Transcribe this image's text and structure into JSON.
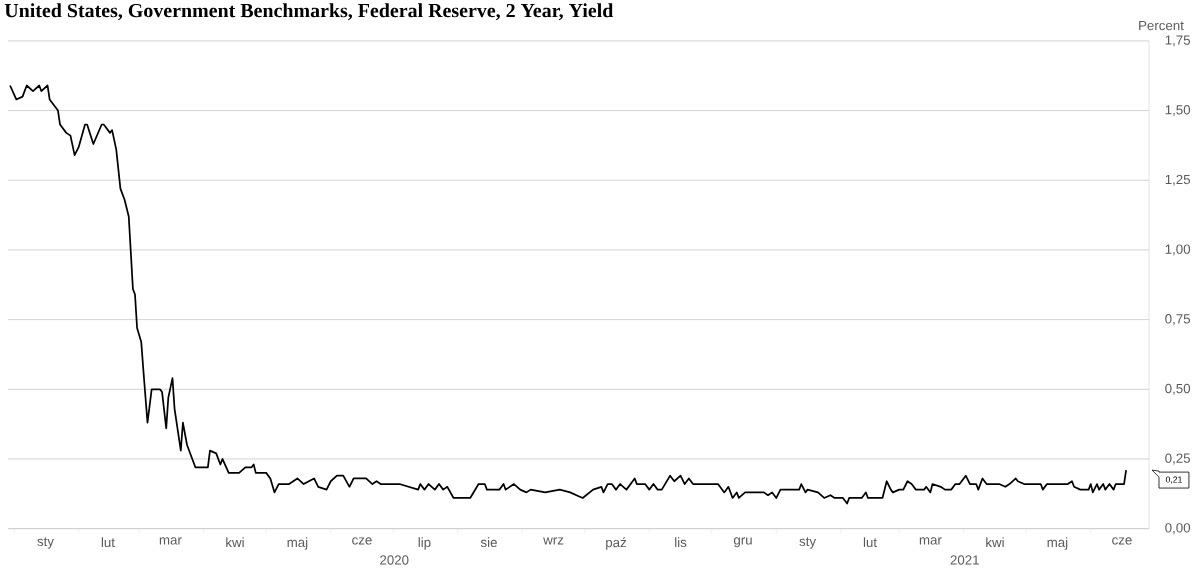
{
  "chart_data": {
    "type": "line",
    "title": "United States, Government Benchmarks, Federal Reserve, 2 Year, Yield",
    "ylabel": "Percent",
    "x": [
      "2019-12-30",
      "2020-01-02",
      "2020-01-05",
      "2020-01-07",
      "2020-01-10",
      "2020-01-13",
      "2020-01-14",
      "2020-01-17",
      "2020-01-18",
      "2020-01-22",
      "2020-01-23",
      "2020-01-26",
      "2020-01-28",
      "2020-01-30",
      "2020-02-01",
      "2020-02-04",
      "2020-02-05",
      "2020-02-08",
      "2020-02-12",
      "2020-02-13",
      "2020-02-16",
      "2020-02-17",
      "2020-02-19",
      "2020-02-21",
      "2020-02-23",
      "2020-02-25",
      "2020-02-27",
      "2020-02-28",
      "2020-02-29",
      "2020-03-02",
      "2020-03-03",
      "2020-03-05",
      "2020-03-07",
      "2020-03-11",
      "2020-03-12",
      "2020-03-14",
      "2020-03-15",
      "2020-03-17",
      "2020-03-18",
      "2020-03-21",
      "2020-03-22",
      "2020-03-24",
      "2020-03-27",
      "2020-03-28",
      "2020-04-03",
      "2020-04-04",
      "2020-04-07",
      "2020-04-09",
      "2020-04-10",
      "2020-04-13",
      "2020-04-18",
      "2020-04-21",
      "2020-04-24",
      "2020-04-25",
      "2020-04-26",
      "2020-05-01",
      "2020-05-03",
      "2020-05-05",
      "2020-05-07",
      "2020-05-10",
      "2020-05-12",
      "2020-05-16",
      "2020-05-19",
      "2020-05-24",
      "2020-05-26",
      "2020-05-30",
      "2020-06-01",
      "2020-06-04",
      "2020-06-07",
      "2020-06-10",
      "2020-06-12",
      "2020-06-18",
      "2020-06-21",
      "2020-06-23",
      "2020-06-25",
      "2020-07-01",
      "2020-07-04",
      "2020-07-13",
      "2020-07-14",
      "2020-07-16",
      "2020-07-18",
      "2020-07-21",
      "2020-07-23",
      "2020-07-25",
      "2020-07-27",
      "2020-07-30",
      "2020-08-07",
      "2020-08-11",
      "2020-08-14",
      "2020-08-15",
      "2020-08-21",
      "2020-08-23",
      "2020-08-24",
      "2020-08-28",
      "2020-08-31",
      "2020-09-03",
      "2020-09-05",
      "2020-09-12",
      "2020-09-19",
      "2020-09-24",
      "2020-09-27",
      "2020-09-30",
      "2020-10-05",
      "2020-10-09",
      "2020-10-10",
      "2020-10-12",
      "2020-10-14",
      "2020-10-16",
      "2020-10-18",
      "2020-10-21",
      "2020-10-25",
      "2020-10-26",
      "2020-10-30",
      "2020-11-01",
      "2020-11-03",
      "2020-11-05",
      "2020-11-07",
      "2020-11-11",
      "2020-11-13",
      "2020-11-16",
      "2020-11-18",
      "2020-11-20",
      "2020-11-22",
      "2020-11-26",
      "2020-12-01",
      "2020-12-04",
      "2020-12-07",
      "2020-12-09",
      "2020-12-11",
      "2020-12-13",
      "2020-12-14",
      "2020-12-17",
      "2020-12-26",
      "2020-12-28",
      "2020-12-30",
      "2021-01-01",
      "2021-01-03",
      "2021-01-12",
      "2021-01-13",
      "2021-01-15",
      "2021-01-16",
      "2021-01-21",
      "2021-01-24",
      "2021-01-27",
      "2021-01-29",
      "2021-02-02",
      "2021-02-04",
      "2021-02-05",
      "2021-02-11",
      "2021-02-13",
      "2021-02-14",
      "2021-02-21",
      "2021-02-23",
      "2021-02-25",
      "2021-02-26",
      "2021-03-01",
      "2021-03-03",
      "2021-03-05",
      "2021-03-07",
      "2021-03-09",
      "2021-03-13",
      "2021-03-14",
      "2021-03-16",
      "2021-03-17",
      "2021-03-21",
      "2021-03-23",
      "2021-03-26",
      "2021-03-28",
      "2021-03-30",
      "2021-04-02",
      "2021-04-04",
      "2021-04-07",
      "2021-04-08",
      "2021-04-10",
      "2021-04-12",
      "2021-04-18",
      "2021-04-21",
      "2021-04-23",
      "2021-04-26",
      "2021-04-27",
      "2021-04-30",
      "2021-05-08",
      "2021-05-09",
      "2021-05-11",
      "2021-05-21",
      "2021-05-23",
      "2021-05-24",
      "2021-05-27",
      "2021-05-31",
      "2021-06-01",
      "2021-06-02",
      "2021-06-04",
      "2021-06-05",
      "2021-06-07",
      "2021-06-08",
      "2021-06-10",
      "2021-06-12",
      "2021-06-13",
      "2021-06-17",
      "2021-06-18"
    ],
    "series": [
      {
        "color": "#000000",
        "values": [
          1.59,
          1.54,
          1.55,
          1.59,
          1.57,
          1.59,
          1.57,
          1.59,
          1.54,
          1.5,
          1.45,
          1.42,
          1.41,
          1.34,
          1.37,
          1.45,
          1.45,
          1.38,
          1.45,
          1.45,
          1.42,
          1.43,
          1.36,
          1.22,
          1.18,
          1.12,
          0.86,
          0.84,
          0.72,
          0.67,
          0.57,
          0.38,
          0.5,
          0.5,
          0.49,
          0.36,
          0.47,
          0.54,
          0.43,
          0.28,
          0.38,
          0.3,
          0.24,
          0.22,
          0.22,
          0.28,
          0.27,
          0.23,
          0.25,
          0.2,
          0.2,
          0.22,
          0.22,
          0.23,
          0.2,
          0.2,
          0.18,
          0.13,
          0.16,
          0.16,
          0.16,
          0.18,
          0.16,
          0.18,
          0.15,
          0.14,
          0.17,
          0.19,
          0.19,
          0.15,
          0.18,
          0.18,
          0.16,
          0.17,
          0.16,
          0.16,
          0.16,
          0.14,
          0.16,
          0.14,
          0.16,
          0.14,
          0.16,
          0.14,
          0.15,
          0.11,
          0.11,
          0.16,
          0.16,
          0.14,
          0.14,
          0.16,
          0.14,
          0.16,
          0.14,
          0.13,
          0.14,
          0.13,
          0.14,
          0.13,
          0.12,
          0.11,
          0.14,
          0.15,
          0.13,
          0.16,
          0.16,
          0.14,
          0.16,
          0.14,
          0.18,
          0.16,
          0.16,
          0.14,
          0.16,
          0.14,
          0.14,
          0.19,
          0.17,
          0.19,
          0.16,
          0.18,
          0.16,
          0.16,
          0.16,
          0.16,
          0.13,
          0.15,
          0.11,
          0.13,
          0.11,
          0.13,
          0.13,
          0.12,
          0.13,
          0.11,
          0.14,
          0.14,
          0.16,
          0.13,
          0.14,
          0.13,
          0.11,
          0.12,
          0.11,
          0.11,
          0.09,
          0.11,
          0.11,
          0.13,
          0.11,
          0.11,
          0.17,
          0.14,
          0.13,
          0.14,
          0.14,
          0.17,
          0.16,
          0.14,
          0.14,
          0.15,
          0.13,
          0.16,
          0.15,
          0.14,
          0.14,
          0.16,
          0.16,
          0.19,
          0.16,
          0.16,
          0.14,
          0.18,
          0.16,
          0.16,
          0.15,
          0.16,
          0.18,
          0.17,
          0.16,
          0.16,
          0.14,
          0.16,
          0.16,
          0.17,
          0.15,
          0.14,
          0.14,
          0.16,
          0.13,
          0.16,
          0.14,
          0.16,
          0.14,
          0.16,
          0.14,
          0.16,
          0.16,
          0.21
        ]
      }
    ],
    "xlim": [
      "2019-12-29",
      "2021-06-29"
    ],
    "xticks": [
      {
        "value": "2020-01-01",
        "label": null
      },
      {
        "value": "2020-01-16",
        "label": "sty"
      },
      {
        "value": "2020-02-01",
        "label": null
      },
      {
        "value": "2020-02-15",
        "label": "lut"
      },
      {
        "value": "2020-03-01",
        "label": null
      },
      {
        "value": "2020-03-16",
        "label": "mar"
      },
      {
        "value": "2020-04-01",
        "label": null
      },
      {
        "value": "2020-04-16",
        "label": "kwi"
      },
      {
        "value": "2020-05-01",
        "label": null
      },
      {
        "value": "2020-05-16",
        "label": "maj"
      },
      {
        "value": "2020-06-01",
        "label": null
      },
      {
        "value": "2020-06-16",
        "label": "cze"
      },
      {
        "value": "2020-07-01",
        "label": null
      },
      {
        "value": "2020-07-16",
        "label": "lip"
      },
      {
        "value": "2020-08-01",
        "label": null
      },
      {
        "value": "2020-08-16",
        "label": "sie"
      },
      {
        "value": "2020-09-01",
        "label": null
      },
      {
        "value": "2020-09-16",
        "label": "wrz"
      },
      {
        "value": "2020-10-01",
        "label": null
      },
      {
        "value": "2020-10-16",
        "label": "paź"
      },
      {
        "value": "2020-11-01",
        "label": null
      },
      {
        "value": "2020-11-16",
        "label": "lis"
      },
      {
        "value": "2020-12-01",
        "label": null
      },
      {
        "value": "2020-12-16",
        "label": "gru"
      },
      {
        "value": "2021-01-01",
        "label": null
      },
      {
        "value": "2021-01-16",
        "label": "sty"
      },
      {
        "value": "2021-02-01",
        "label": null
      },
      {
        "value": "2021-02-15",
        "label": "lut"
      },
      {
        "value": "2021-03-01",
        "label": null
      },
      {
        "value": "2021-03-16",
        "label": "mar"
      },
      {
        "value": "2021-04-01",
        "label": null
      },
      {
        "value": "2021-04-16",
        "label": "kwi"
      },
      {
        "value": "2021-05-01",
        "label": null
      },
      {
        "value": "2021-05-16",
        "label": "maj"
      },
      {
        "value": "2021-06-01",
        "label": null
      },
      {
        "value": "2021-06-16",
        "label": "cze"
      }
    ],
    "ylim": [
      0,
      1.75
    ],
    "yticks": [
      {
        "value": 0,
        "label": "0,00"
      },
      {
        "value": 0.25,
        "label": "0,25"
      },
      {
        "value": 0.5,
        "label": "0,50"
      },
      {
        "value": 0.75,
        "label": "0,75"
      },
      {
        "value": 1,
        "label": "1,00"
      },
      {
        "value": 1.25,
        "label": "1,25"
      },
      {
        "value": 1.5,
        "label": "1,50"
      },
      {
        "value": 1.75,
        "label": "1,75"
      }
    ],
    "grid": "y",
    "annotations": [
      "2020",
      "2021",
      "0,21"
    ]
  }
}
